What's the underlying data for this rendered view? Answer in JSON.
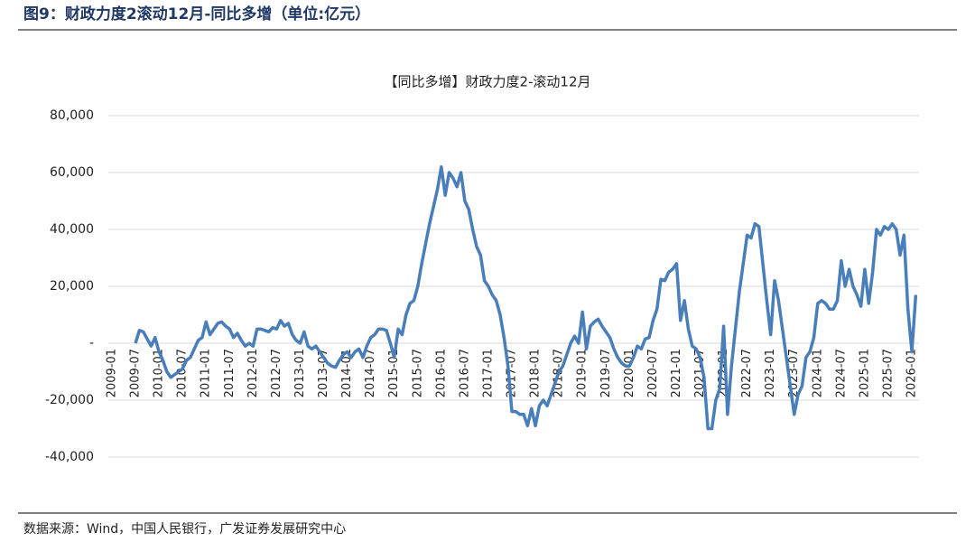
{
  "header": "图9：财政力度2滚动12月-同比多增（单位:亿元）",
  "footer": "数据来源：Wind，中国人民银行，广发证券发展研究中心",
  "chart_data": {
    "type": "line",
    "title": "【同比多增】财政力度2-滚动12月",
    "categories": [
      "2009-01",
      null,
      null,
      null,
      null,
      null,
      "2009-07",
      null,
      null,
      null,
      null,
      null,
      "2010-01",
      null,
      null,
      null,
      null,
      null,
      "2010-07",
      null,
      null,
      null,
      null,
      null,
      "2011-01",
      null,
      null,
      null,
      null,
      null,
      "2011-07",
      null,
      null,
      null,
      null,
      null,
      "2012-01",
      null,
      null,
      null,
      null,
      null,
      "2012-07",
      null,
      null,
      null,
      null,
      null,
      "2013-01",
      null,
      null,
      null,
      null,
      null,
      "2013-07",
      null,
      null,
      null,
      null,
      null,
      "2014-01",
      null,
      null,
      null,
      null,
      null,
      "2014-07",
      null,
      null,
      null,
      null,
      null,
      "2015-01",
      null,
      null,
      null,
      null,
      null,
      "2015-07",
      null,
      null,
      null,
      null,
      null,
      "2016-01",
      null,
      null,
      null,
      null,
      null,
      "2016-07",
      null,
      null,
      null,
      null,
      null,
      "2017-01",
      null,
      null,
      null,
      null,
      null,
      "2017-07",
      null,
      null,
      null,
      null,
      null,
      "2018-01",
      null,
      null,
      null,
      null,
      null,
      "2018-07",
      null,
      null,
      null,
      null,
      null,
      "2019-01",
      null,
      null,
      null,
      null,
      null,
      "2019-07",
      null,
      null,
      null,
      null,
      null,
      "2020-01",
      null,
      null,
      null,
      null,
      null,
      "2020-07",
      null,
      null,
      null,
      null,
      null,
      "2021-01",
      null,
      null,
      null,
      null,
      null,
      "2021-07",
      null,
      null,
      null,
      null,
      null,
      "2022-01",
      null,
      null,
      null,
      null,
      null,
      "2022-07",
      null,
      null,
      null,
      null,
      null,
      "2023-01",
      null,
      null,
      null,
      null,
      null,
      "2023-07",
      null,
      null,
      null,
      null,
      null,
      "2024-01",
      null,
      null,
      null,
      null,
      null,
      "2024-07",
      null,
      null,
      null,
      null,
      null,
      "2025-01",
      null,
      null,
      null,
      null,
      null,
      "2025-07",
      null,
      null,
      null,
      null,
      null,
      "2026-01",
      null
    ],
    "series": [
      {
        "color": "#4a7ebb",
        "values": [
          null,
          null,
          null,
          null,
          null,
          null,
          0,
          4500,
          4000,
          1500,
          -1000,
          2000,
          -3000,
          -6000,
          -10000,
          -12000,
          -11000,
          -10000,
          -9000,
          -6000,
          -5000,
          -2000,
          1000,
          2000,
          7500,
          3000,
          5000,
          7000,
          7500,
          6000,
          5000,
          2000,
          3500,
          1000,
          -1000,
          0,
          -1000,
          5000,
          5000,
          4500,
          4000,
          5500,
          5000,
          8000,
          6000,
          7000,
          3000,
          1000,
          0,
          4000,
          -1000,
          -2000,
          -1000,
          -3000,
          -5000,
          -7000,
          -8000,
          -8500,
          -6000,
          -4000,
          -3000,
          -5000,
          -3000,
          -2000,
          -5000,
          -1000,
          2000,
          3000,
          5000,
          5000,
          4500,
          0,
          -5000,
          5000,
          3000,
          10000,
          14000,
          15000,
          20000,
          28000,
          35000,
          42000,
          48000,
          54000,
          62000,
          52000,
          60000,
          58000,
          55000,
          60000,
          50000,
          47000,
          40000,
          34000,
          31000,
          22000,
          20000,
          17000,
          15000,
          10000,
          2000,
          -8000,
          -24000,
          -24000,
          -25000,
          -25000,
          -29000,
          -23000,
          -29000,
          -22000,
          -20000,
          -22000,
          -18000,
          -14000,
          -10000,
          -8000,
          -4000,
          0,
          2500,
          0,
          11000,
          -2000,
          6000,
          7500,
          8500,
          6000,
          4000,
          2000,
          -2000,
          -5000,
          -7000,
          -8000,
          -8000,
          -5000,
          -1000,
          -2000,
          1500,
          2000,
          8000,
          12000,
          22500,
          22000,
          25000,
          26000,
          28000,
          8000,
          15000,
          5000,
          -1000,
          -2000,
          -5000,
          -12000,
          -30000,
          -30000,
          -20000,
          -16000,
          6000,
          -25000,
          -8000,
          5000,
          18000,
          28000,
          38000,
          37000,
          42000,
          41000,
          28000,
          15000,
          3000,
          22000,
          15000,
          5000,
          -5000,
          -15000,
          -25000,
          -18000,
          -15000,
          -5000,
          -3000,
          2000,
          14000,
          15000,
          14000,
          12000,
          12000,
          15000,
          29000,
          20000,
          26000,
          20000,
          17000,
          13000,
          26000,
          14000,
          25000,
          40000,
          38000,
          41000,
          40000,
          42000,
          40000,
          31000,
          38000,
          12000,
          -3000,
          17000
        ]
      }
    ],
    "ylim": [
      -40000,
      80000
    ],
    "yticks": [
      {
        "value": -40000,
        "label": "-40,000"
      },
      {
        "value": -20000,
        "label": "-20,000"
      },
      {
        "value": 0,
        "label": "-"
      },
      {
        "value": 20000,
        "label": "20,000"
      },
      {
        "value": 40000,
        "label": "40,000"
      },
      {
        "value": 60000,
        "label": "60,000"
      },
      {
        "value": 80000,
        "label": "80,000"
      }
    ],
    "grid": true
  }
}
